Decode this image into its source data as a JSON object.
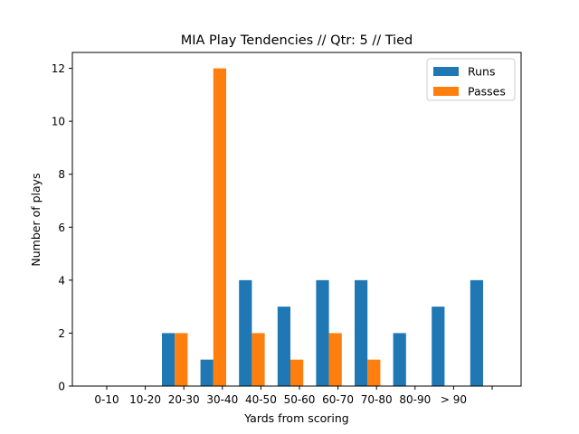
{
  "chart_data": {
    "type": "bar",
    "title": "MIA Play Tendencies // Qtr: 5 // Tied",
    "xlabel": "Yards from scoring",
    "ylabel": "Number of plays",
    "categories": [
      "0-10",
      "10-20",
      "20-30",
      "30-40",
      "40-50",
      "50-60",
      "60-70",
      "70-80",
      "80-90",
      "> 90",
      ""
    ],
    "series": [
      {
        "name": "Runs",
        "color": "#1f77b4",
        "values": [
          0,
          2,
          1,
          4,
          3,
          4,
          4,
          2,
          3,
          4,
          0
        ]
      },
      {
        "name": "Passes",
        "color": "#ff7f0e",
        "values": [
          0,
          2,
          12,
          2,
          1,
          2,
          1,
          0,
          0,
          0,
          0
        ]
      }
    ],
    "ylim": [
      0,
      12.6
    ],
    "yticks": [
      0,
      2,
      4,
      6,
      8,
      10,
      12
    ],
    "grid": false,
    "legend": "top-right"
  }
}
